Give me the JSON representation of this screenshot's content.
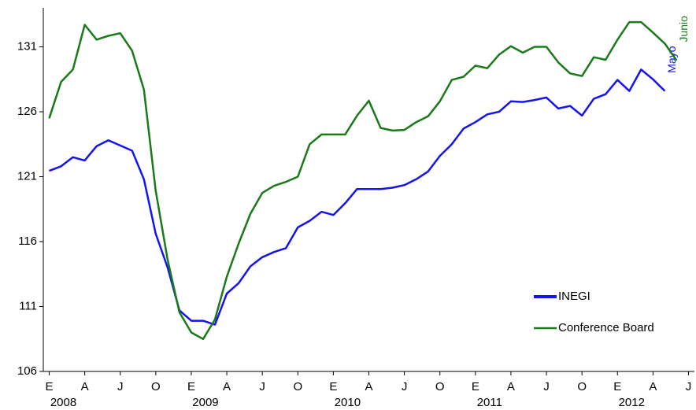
{
  "chart_data": {
    "type": "line",
    "categories": [
      "E",
      null,
      null,
      "A",
      null,
      null,
      "J",
      null,
      null,
      "O",
      null,
      null,
      "E",
      null,
      null,
      "A",
      null,
      null,
      "J",
      null,
      null,
      "O",
      null,
      null,
      "E",
      null,
      null,
      "A",
      null,
      null,
      "J",
      null,
      null,
      "O",
      null,
      null,
      "E",
      null,
      null,
      "A",
      null,
      null,
      "J",
      null,
      null,
      "O",
      null,
      null,
      "E",
      null,
      null,
      "A",
      null,
      null,
      "J"
    ],
    "year_ticks": [
      {
        "value": 0,
        "label": "2008"
      },
      {
        "value": 12,
        "label": "2009"
      },
      {
        "value": 24,
        "label": "2010"
      },
      {
        "value": 36,
        "label": "2011"
      },
      {
        "value": 48,
        "label": "2012"
      }
    ],
    "series": [
      {
        "name": "INEGI",
        "color": "#1414f0",
        "end_label": "Mayo",
        "values": [
          121.45,
          121.8,
          122.5,
          122.25,
          123.35,
          123.8,
          123.4,
          123.0,
          120.8,
          116.6,
          114.0,
          110.7,
          109.9,
          109.9,
          109.6,
          112.0,
          112.8,
          114.1,
          114.8,
          115.2,
          115.5,
          117.1,
          117.6,
          118.3,
          118.05,
          118.95,
          120.05,
          120.05,
          120.05,
          120.15,
          120.35,
          120.8,
          121.4,
          122.6,
          123.5,
          124.7,
          125.2,
          125.8,
          126.0,
          126.8,
          126.75,
          126.9,
          127.1,
          126.25,
          126.45,
          125.7,
          127.0,
          127.35,
          128.45,
          127.6,
          129.25,
          128.5,
          127.6,
          null,
          null
        ]
      },
      {
        "name": "Conference Board",
        "color": "#1a7a1a",
        "end_label": "Junio",
        "values": [
          125.5,
          128.3,
          129.25,
          132.7,
          131.55,
          131.85,
          132.05,
          130.7,
          127.7,
          119.9,
          114.6,
          110.55,
          109.0,
          108.5,
          110.0,
          113.3,
          115.85,
          118.15,
          119.75,
          120.3,
          120.6,
          121.0,
          123.5,
          124.25,
          124.25,
          124.25,
          125.7,
          126.85,
          124.75,
          124.55,
          124.6,
          125.2,
          125.65,
          126.8,
          128.45,
          128.7,
          129.55,
          129.35,
          130.4,
          131.05,
          130.55,
          131.0,
          131.0,
          129.8,
          128.95,
          128.75,
          130.2,
          130.0,
          131.55,
          132.9,
          132.9,
          132.1,
          131.25,
          129.95,
          null
        ]
      }
    ],
    "ylim": [
      106,
      134
    ],
    "yticks": [
      106,
      111,
      116,
      121,
      126,
      131
    ],
    "legend": "lower right"
  }
}
